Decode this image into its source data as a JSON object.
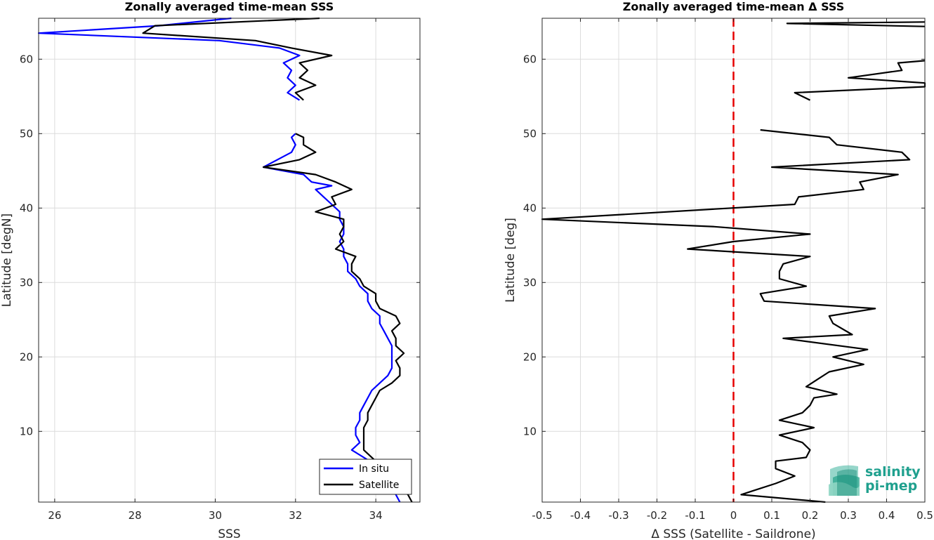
{
  "chart_data": [
    {
      "type": "line",
      "title": "Zonally averaged time-mean SSS",
      "xlabel": "SSS",
      "ylabel": "Latitude [degN]",
      "xlim": [
        25.6,
        35.1
      ],
      "ylim": [
        0.5,
        65.5
      ],
      "xticks": [
        26,
        28,
        30,
        32,
        34
      ],
      "yticks": [
        10,
        20,
        30,
        40,
        50,
        60
      ],
      "grid": true,
      "legend_position": "bottom-right",
      "series": [
        {
          "name": "In situ",
          "color": "#0000ff",
          "segments": [
            [
              [
                30.4,
                65.5
              ],
              [
                28.6,
                64.5
              ],
              [
                25.6,
                63.5
              ],
              [
                30.1,
                62.5
              ],
              [
                31.6,
                61.5
              ],
              [
                32.1,
                60.5
              ],
              [
                31.7,
                59.5
              ],
              [
                31.9,
                58.5
              ],
              [
                31.8,
                57.5
              ],
              [
                32.0,
                56.5
              ],
              [
                31.8,
                55.5
              ],
              [
                32.1,
                54.5
              ]
            ],
            [
              [
                32.0,
                50.0
              ],
              [
                31.9,
                49.5
              ],
              [
                32.0,
                48.5
              ],
              [
                31.9,
                47.5
              ],
              [
                31.2,
                45.5
              ],
              [
                32.2,
                44.5
              ],
              [
                32.4,
                43.5
              ],
              [
                32.9,
                43.0
              ],
              [
                32.5,
                42.5
              ],
              [
                32.7,
                41.5
              ],
              [
                32.9,
                40.5
              ],
              [
                33.1,
                39.5
              ],
              [
                33.1,
                38.5
              ],
              [
                33.2,
                37.5
              ],
              [
                33.2,
                36.5
              ],
              [
                33.1,
                35.5
              ],
              [
                33.2,
                34.5
              ],
              [
                33.2,
                33.5
              ],
              [
                33.3,
                32.5
              ],
              [
                33.3,
                31.5
              ],
              [
                33.5,
                30.5
              ],
              [
                33.6,
                29.5
              ],
              [
                33.8,
                28.5
              ],
              [
                33.8,
                27.5
              ],
              [
                33.9,
                26.5
              ],
              [
                34.1,
                25.5
              ],
              [
                34.1,
                24.5
              ],
              [
                34.2,
                23.5
              ],
              [
                34.3,
                22.5
              ],
              [
                34.4,
                21.5
              ],
              [
                34.4,
                20.5
              ],
              [
                34.4,
                19.5
              ],
              [
                34.4,
                18.5
              ],
              [
                34.3,
                17.5
              ],
              [
                34.1,
                16.5
              ],
              [
                33.9,
                15.5
              ],
              [
                33.8,
                14.5
              ],
              [
                33.7,
                13.5
              ],
              [
                33.6,
                12.5
              ],
              [
                33.6,
                11.5
              ],
              [
                33.5,
                10.5
              ],
              [
                33.5,
                9.5
              ],
              [
                33.6,
                8.5
              ],
              [
                33.4,
                7.5
              ],
              [
                33.7,
                6.5
              ],
              [
                34.0,
                5.5
              ],
              [
                34.2,
                4.5
              ],
              [
                34.3,
                3.5
              ],
              [
                34.4,
                2.5
              ],
              [
                34.5,
                1.5
              ],
              [
                34.6,
                0.5
              ]
            ]
          ]
        },
        {
          "name": "Satellite",
          "color": "#000000",
          "segments": [
            [
              [
                32.6,
                65.5
              ],
              [
                28.5,
                64.5
              ],
              [
                28.2,
                63.5
              ],
              [
                31.0,
                62.5
              ],
              [
                31.9,
                61.5
              ],
              [
                32.9,
                60.5
              ],
              [
                32.1,
                59.5
              ],
              [
                32.3,
                58.5
              ],
              [
                32.1,
                57.5
              ],
              [
                32.5,
                56.5
              ],
              [
                32.0,
                55.5
              ],
              [
                32.2,
                54.5
              ]
            ],
            [
              [
                32.0,
                50.0
              ],
              [
                32.2,
                49.5
              ],
              [
                32.2,
                48.5
              ],
              [
                32.5,
                47.5
              ],
              [
                32.1,
                46.5
              ],
              [
                31.2,
                45.5
              ],
              [
                32.5,
                44.5
              ],
              [
                33.0,
                43.5
              ],
              [
                33.4,
                42.5
              ],
              [
                32.9,
                41.5
              ],
              [
                33.0,
                40.5
              ],
              [
                32.5,
                39.5
              ],
              [
                33.2,
                38.5
              ],
              [
                33.2,
                37.5
              ],
              [
                33.1,
                36.5
              ],
              [
                33.2,
                35.5
              ],
              [
                33.0,
                34.5
              ],
              [
                33.5,
                33.5
              ],
              [
                33.4,
                32.5
              ],
              [
                33.4,
                31.5
              ],
              [
                33.6,
                30.5
              ],
              [
                33.7,
                29.5
              ],
              [
                34.0,
                28.5
              ],
              [
                34.0,
                27.5
              ],
              [
                34.1,
                26.5
              ],
              [
                34.5,
                25.5
              ],
              [
                34.6,
                24.5
              ],
              [
                34.4,
                23.5
              ],
              [
                34.5,
                22.5
              ],
              [
                34.5,
                21.5
              ],
              [
                34.7,
                20.5
              ],
              [
                34.5,
                19.5
              ],
              [
                34.6,
                18.5
              ],
              [
                34.6,
                17.5
              ],
              [
                34.4,
                16.5
              ],
              [
                34.1,
                15.5
              ],
              [
                34.0,
                14.5
              ],
              [
                33.9,
                13.5
              ],
              [
                33.8,
                12.5
              ],
              [
                33.8,
                11.5
              ],
              [
                33.7,
                10.5
              ],
              [
                33.7,
                9.5
              ],
              [
                33.7,
                8.5
              ],
              [
                33.7,
                7.5
              ],
              [
                33.9,
                6.5
              ],
              [
                34.1,
                5.5
              ],
              [
                34.2,
                4.5
              ],
              [
                34.5,
                3.5
              ],
              [
                34.6,
                2.5
              ],
              [
                34.8,
                1.5
              ],
              [
                34.9,
                0.5
              ]
            ]
          ]
        }
      ]
    },
    {
      "type": "line",
      "title": "Zonally averaged time-mean Δ SSS",
      "xlabel": "Δ SSS (Satellite - Saildrone)",
      "ylabel": "Latitude [deg]",
      "xlim": [
        -0.5,
        0.5
      ],
      "ylim": [
        0.5,
        65.5
      ],
      "xticks": [
        -0.5,
        -0.4,
        -0.3,
        -0.2,
        -0.1,
        0,
        0.1,
        0.2,
        0.3,
        0.4,
        0.5
      ],
      "yticks": [
        10,
        20,
        30,
        40,
        50,
        60
      ],
      "grid": true,
      "reference_line": {
        "x": 0,
        "color": "#e60000",
        "style": "dashed"
      },
      "series": [
        {
          "name": "",
          "color": "#000000",
          "segments": [
            [
              [
                0.5,
                65.0
              ],
              [
                0.14,
                64.8
              ],
              [
                0.5,
                64.4
              ]
            ],
            [
              [
                0.5,
                59.8
              ],
              [
                0.43,
                59.5
              ],
              [
                0.44,
                58.5
              ],
              [
                0.3,
                57.5
              ],
              [
                0.5,
                56.8
              ],
              [
                0.5,
                56.3
              ],
              [
                0.16,
                55.5
              ],
              [
                0.2,
                54.5
              ]
            ],
            [
              [
                0.07,
                50.5
              ],
              [
                0.25,
                49.5
              ],
              [
                0.27,
                48.5
              ],
              [
                0.44,
                47.5
              ],
              [
                0.46,
                46.5
              ],
              [
                0.1,
                45.5
              ],
              [
                0.43,
                44.5
              ],
              [
                0.33,
                43.5
              ],
              [
                0.34,
                42.5
              ],
              [
                0.17,
                41.5
              ],
              [
                0.16,
                40.5
              ],
              [
                -0.5,
                38.5
              ],
              [
                -0.05,
                37.5
              ],
              [
                0.2,
                36.5
              ],
              [
                0.0,
                35.5
              ],
              [
                -0.12,
                34.5
              ],
              [
                0.2,
                33.5
              ],
              [
                0.13,
                32.5
              ],
              [
                0.12,
                31.5
              ],
              [
                0.12,
                30.5
              ],
              [
                0.19,
                29.5
              ],
              [
                0.07,
                28.5
              ],
              [
                0.08,
                27.5
              ],
              [
                0.37,
                26.5
              ],
              [
                0.25,
                25.5
              ],
              [
                0.26,
                24.5
              ],
              [
                0.31,
                23.0
              ],
              [
                0.13,
                22.5
              ],
              [
                0.35,
                21.0
              ],
              [
                0.26,
                20.0
              ],
              [
                0.34,
                19.0
              ],
              [
                0.25,
                18.0
              ],
              [
                0.22,
                17.0
              ],
              [
                0.19,
                16.0
              ],
              [
                0.27,
                15.0
              ],
              [
                0.21,
                14.5
              ],
              [
                0.2,
                13.5
              ],
              [
                0.18,
                12.5
              ],
              [
                0.12,
                11.5
              ],
              [
                0.21,
                10.5
              ],
              [
                0.12,
                9.5
              ],
              [
                0.18,
                8.5
              ],
              [
                0.2,
                7.5
              ],
              [
                0.19,
                6.5
              ],
              [
                0.11,
                6.0
              ],
              [
                0.11,
                5.0
              ],
              [
                0.16,
                4.0
              ],
              [
                0.11,
                3.0
              ],
              [
                0.05,
                2.0
              ],
              [
                0.02,
                1.5
              ],
              [
                0.24,
                0.5
              ]
            ]
          ]
        }
      ]
    }
  ],
  "logo": {
    "line1": "salinity",
    "line2": "pi-mep"
  }
}
